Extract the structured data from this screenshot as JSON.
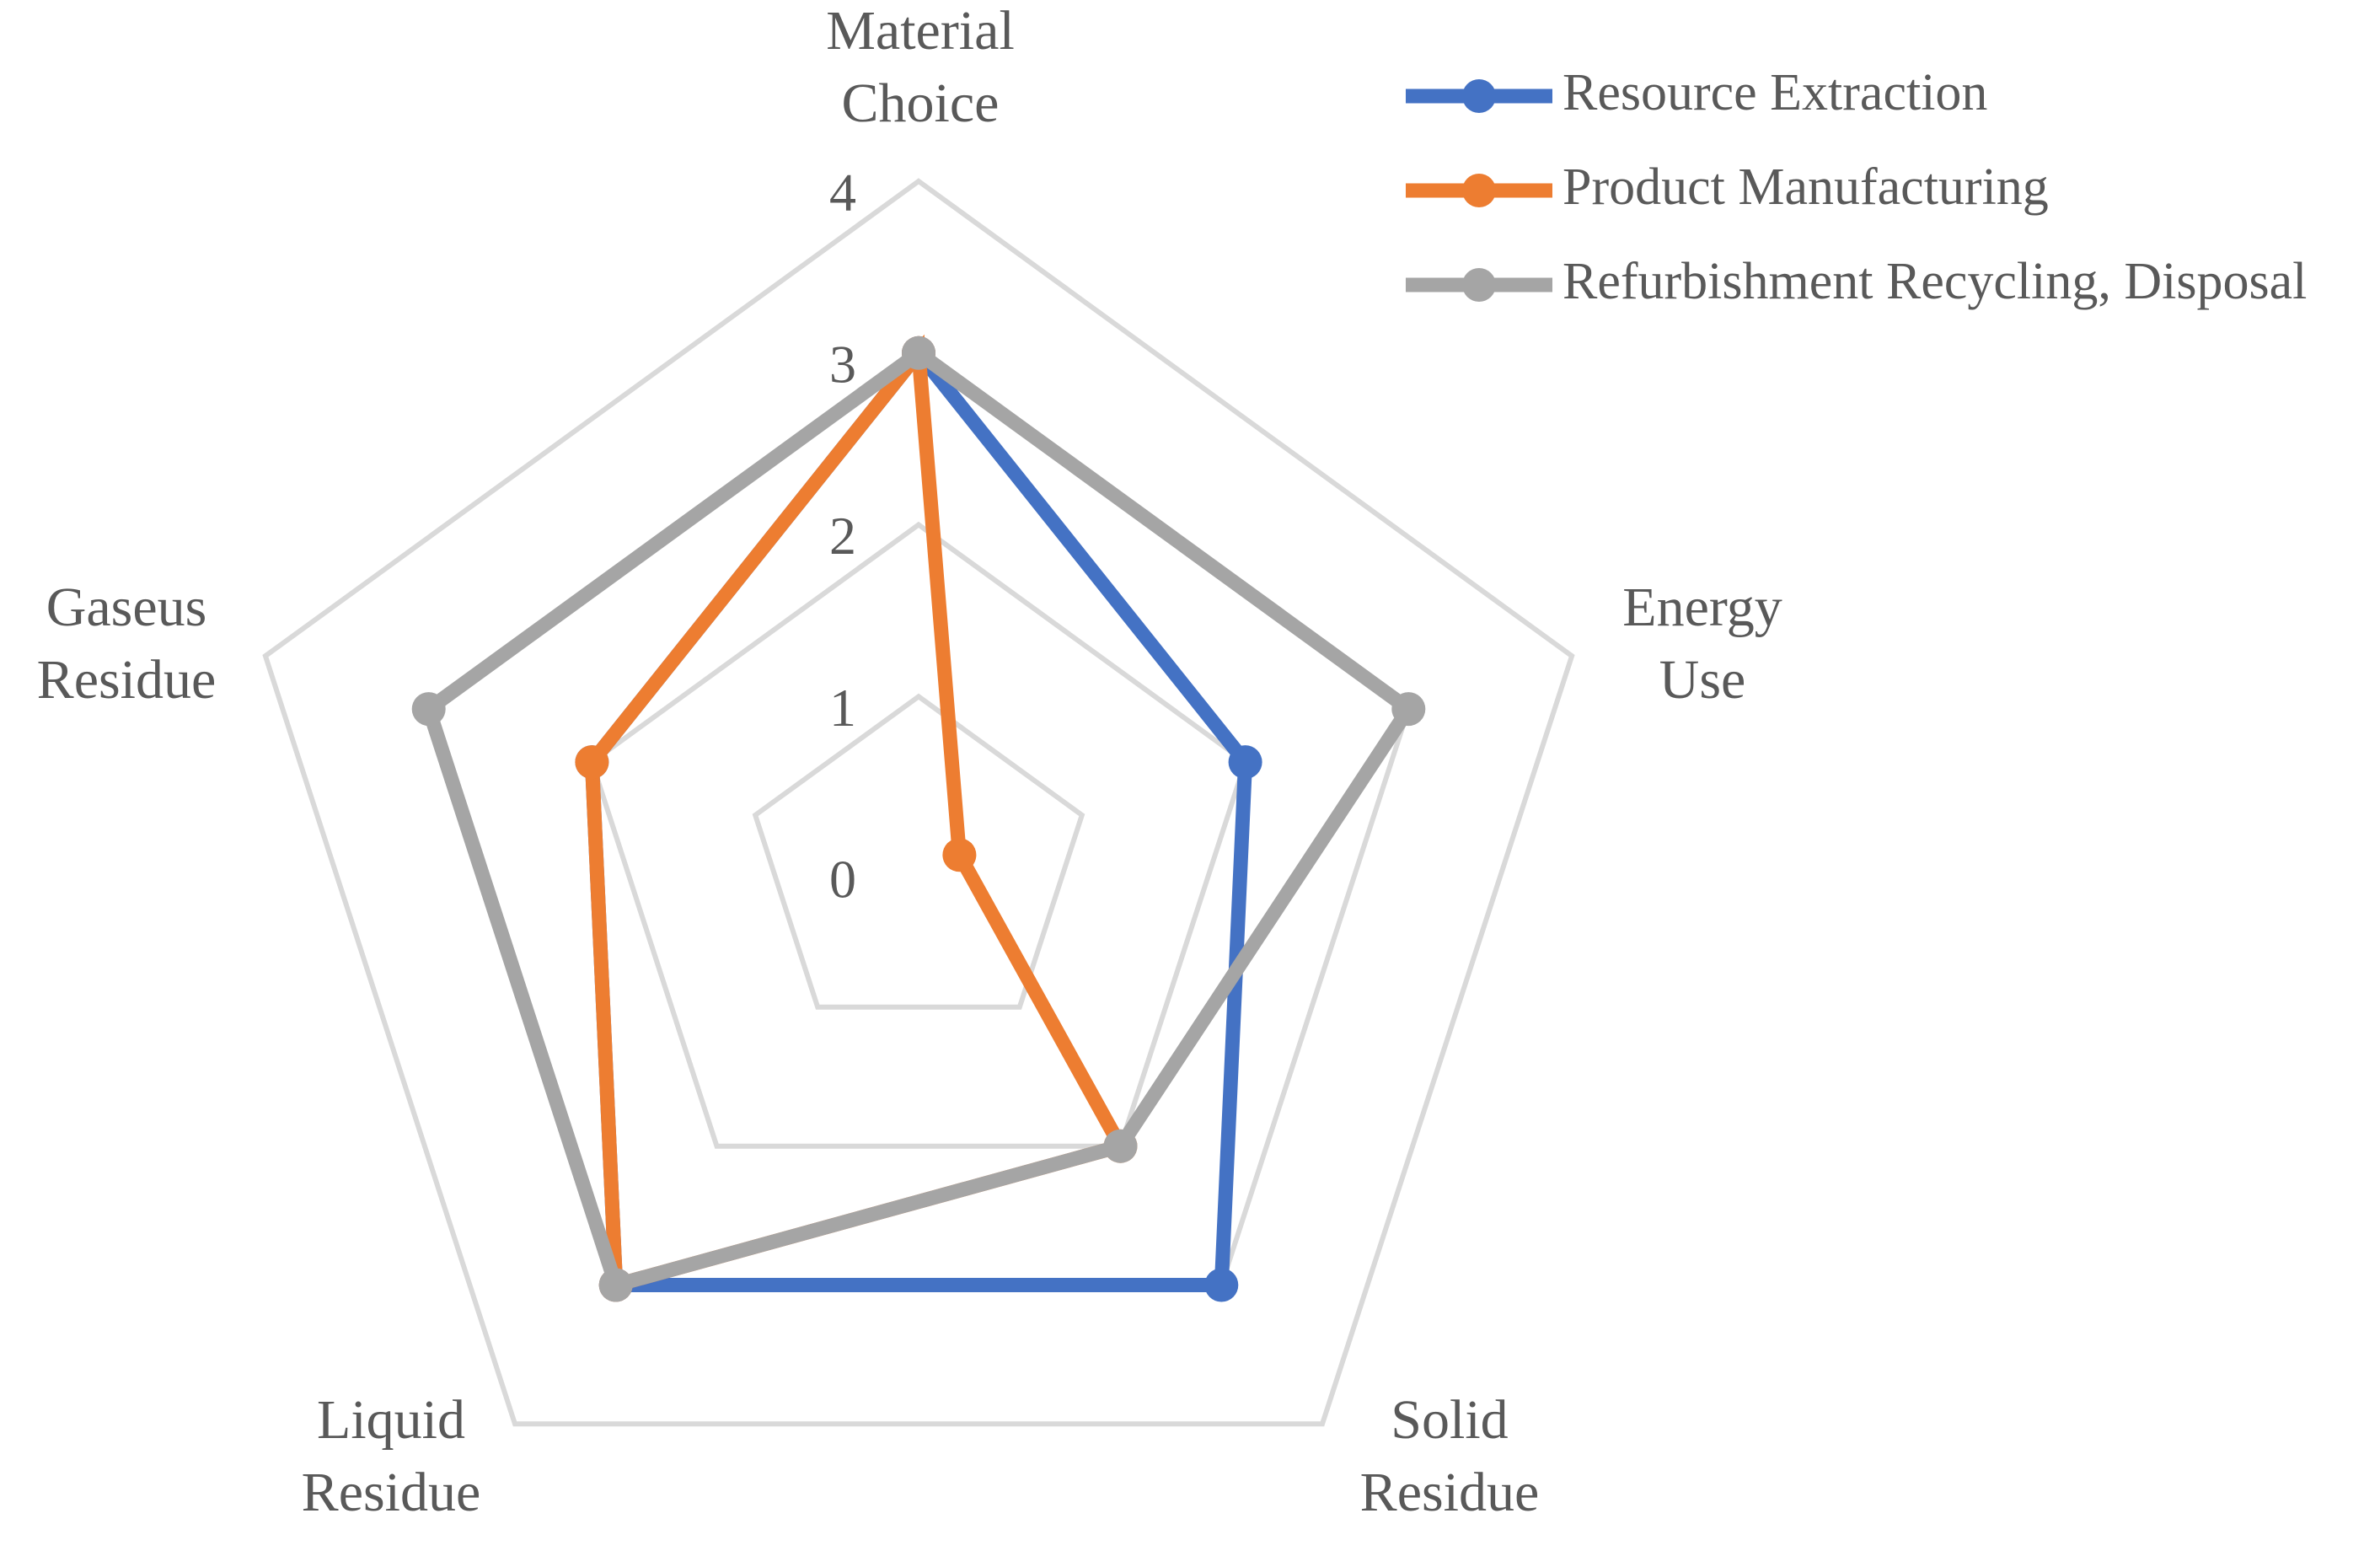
{
  "chart_data": {
    "type": "radar",
    "axes": [
      [
        "Material",
        "Choice"
      ],
      [
        "Energy",
        "Use"
      ],
      [
        "Solid",
        "Residue"
      ],
      [
        "Liquid",
        "Residue"
      ],
      [
        "Gaseus",
        "Residue"
      ]
    ],
    "rlim": [
      0,
      4
    ],
    "ticks": [
      "0",
      "1",
      "2",
      "3",
      "4"
    ],
    "grid": true,
    "legend_position": "top-right",
    "series": [
      {
        "name": "Resource Extraction",
        "color": "#4472c4",
        "values": [
          3,
          2,
          3,
          3,
          2
        ]
      },
      {
        "name": "Product Manufacturing",
        "color": "#ed7d31",
        "values": [
          3,
          0.25,
          2,
          3,
          2
        ]
      },
      {
        "name": "Refurbishment Recycling, Disposal",
        "color": "#a5a5a5",
        "values": [
          3,
          3,
          2,
          3,
          3
        ]
      }
    ]
  }
}
